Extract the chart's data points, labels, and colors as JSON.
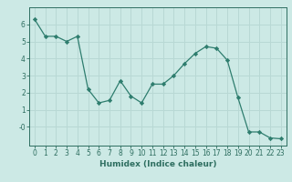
{
  "x": [
    0,
    1,
    2,
    3,
    4,
    5,
    6,
    7,
    8,
    9,
    10,
    11,
    12,
    13,
    14,
    15,
    16,
    17,
    18,
    19,
    20,
    21,
    22,
    23
  ],
  "y": [
    6.3,
    5.3,
    5.3,
    5.0,
    5.3,
    2.2,
    1.4,
    1.55,
    2.7,
    1.8,
    1.4,
    2.5,
    2.5,
    3.0,
    3.7,
    4.3,
    4.7,
    4.6,
    3.9,
    1.7,
    -0.3,
    -0.3,
    -0.65,
    -0.7
  ],
  "line_color": "#2e7d6e",
  "marker": "D",
  "marker_size": 2.2,
  "bg_color": "#cce9e5",
  "grid_color": "#b8d8d4",
  "xlabel": "Humidex (Indice chaleur)",
  "xlim": [
    -0.5,
    23.5
  ],
  "ylim": [
    -1.1,
    7.0
  ],
  "yticks": [
    0,
    1,
    2,
    3,
    4,
    5,
    6
  ],
  "ytick_labels": [
    "-0",
    "1",
    "2",
    "3",
    "4",
    "5",
    "6"
  ],
  "xticks": [
    0,
    1,
    2,
    3,
    4,
    5,
    6,
    7,
    8,
    9,
    10,
    11,
    12,
    13,
    14,
    15,
    16,
    17,
    18,
    19,
    20,
    21,
    22,
    23
  ],
  "axis_color": "#2e6e60",
  "tick_color": "#2e6e60",
  "label_fontsize": 6.5,
  "tick_fontsize": 5.5
}
